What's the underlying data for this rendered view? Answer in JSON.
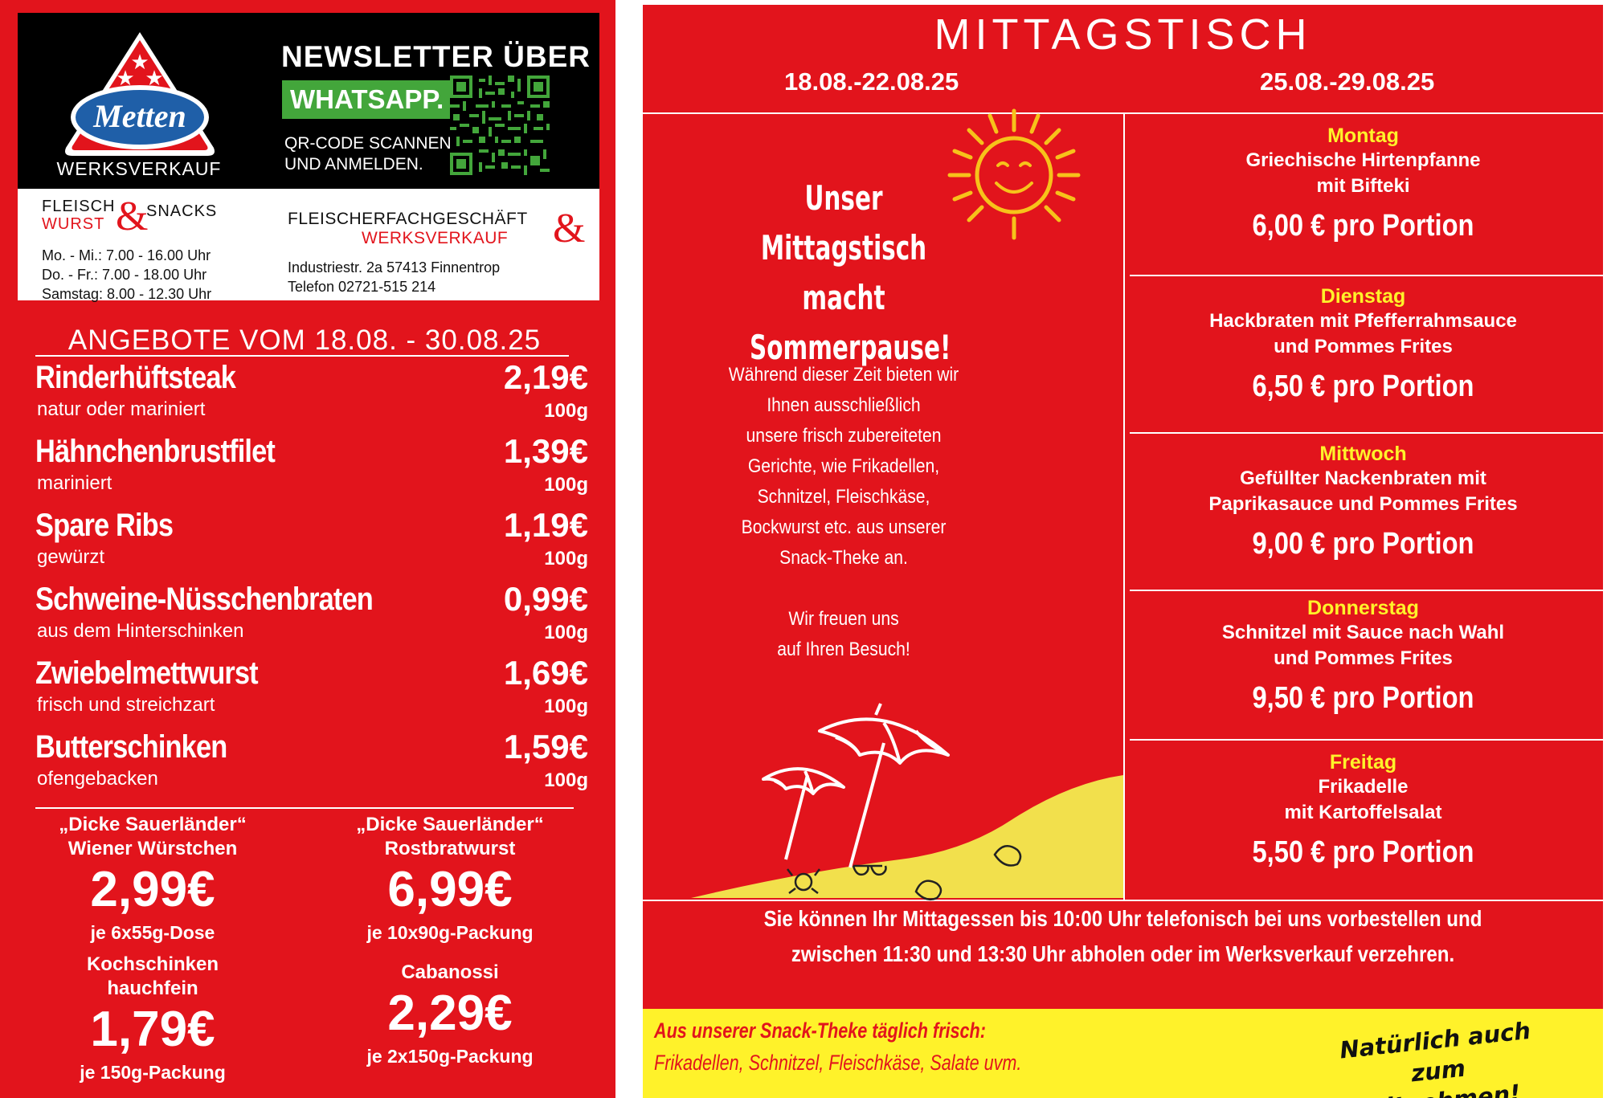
{
  "newsletter": {
    "title": "NEWSLETTER ÜBER",
    "channel": "WHATSAPP.",
    "sub_line1": "QR-CODE SCANNEN",
    "sub_line2": "UND ANMELDEN."
  },
  "brand": {
    "logo_text": "Metten",
    "werksverkauf": "WERKSVERKAUF",
    "colors": {
      "red": "#e2141c",
      "blue": "#1f5fa8",
      "green": "#43a63b",
      "yellow": "#fff22a"
    }
  },
  "shop_left": {
    "fleisch": "FLEISCH",
    "wurst": "WURST",
    "amp": "&",
    "snacks": "SNACKS",
    "hours": [
      "Mo. - Mi.: 7.00 - 16.00 Uhr",
      "Do. - Fr.:   7.00 - 18.00 Uhr",
      "Samstag:  8.00 - 12.30 Uhr"
    ]
  },
  "shop_right": {
    "line1": "FLEISCHERFACHGESCHÄFT",
    "line2": "WERKSVERKAUF",
    "amp": "&",
    "address": "Industriestr. 2a   57413 Finnentrop",
    "phone": "Telefon 02721-515 214"
  },
  "offers": {
    "title": "ANGEBOTE VOM 18.08. - 30.08.25",
    "items": [
      {
        "name": "Rinderhüftsteak",
        "desc": "natur oder mariniert",
        "price": "2,19€",
        "unit": "100g"
      },
      {
        "name": "Hähnchenbrustfilet",
        "desc": "mariniert",
        "price": "1,39€",
        "unit": "100g"
      },
      {
        "name": "Spare Ribs",
        "desc": "gewürzt",
        "price": "1,19€",
        "unit": "100g"
      },
      {
        "name": "Schweine-Nüsschenbraten",
        "desc": "aus dem Hinterschinken",
        "price": "0,99€",
        "unit": "100g"
      },
      {
        "name": "Zwiebelmettwurst",
        "desc": "frisch und streichzart",
        "price": "1,69€",
        "unit": "100g"
      },
      {
        "name": "Butterschinken",
        "desc": "ofengebacken",
        "price": "1,59€",
        "unit": "100g"
      }
    ],
    "specials": [
      {
        "title1": "„Dicke Sauerländer“",
        "title2": "Wiener Würstchen",
        "price": "2,99€",
        "unit": "je 6x55g-Dose"
      },
      {
        "title1": "„Dicke Sauerländer“",
        "title2": "Rostbratwurst",
        "price": "6,99€",
        "unit": "je 10x90g-Packung"
      },
      {
        "title1": "Kochschinken",
        "title2": "hauchfein",
        "price": "1,79€",
        "unit": "je 150g-Packung"
      },
      {
        "title1": "",
        "title2": "Cabanossi",
        "price": "2,29€",
        "unit": "je 2x150g-Packung"
      }
    ]
  },
  "mittagstisch": {
    "title": "MITTAGSTISCH",
    "week1": "18.08.-22.08.25",
    "week2": "25.08.-29.08.25",
    "pause_lines": [
      "Unser",
      "Mittagstisch",
      "macht Sommerpause!"
    ],
    "pause_text": [
      "Während dieser Zeit bieten wir",
      "Ihnen ausschließlich",
      "unsere frisch zubereiteten",
      "Gerichte, wie Frikadellen,",
      "Schnitzel, Fleischkäse,",
      "Bockwurst etc. aus unserer",
      "Snack-Theke an.",
      "",
      "Wir freuen uns",
      "auf Ihren Besuch!"
    ],
    "days": [
      {
        "day": "Montag",
        "meal1": "Griechische Hirtenpfanne",
        "meal2": "mit Bifteki",
        "price": "6,00 € pro Portion"
      },
      {
        "day": "Dienstag",
        "meal1": "Hackbraten mit Pfefferrahmsauce",
        "meal2": "und Pommes Frites",
        "price": "6,50 € pro Portion"
      },
      {
        "day": "Mittwoch",
        "meal1": "Gefüllter Nackenbraten mit",
        "meal2": "Paprikasauce und Pommes Frites",
        "price": "9,00 € pro Portion"
      },
      {
        "day": "Donnerstag",
        "meal1": "Schnitzel mit Sauce nach Wahl",
        "meal2": "und Pommes Frites",
        "price": "9,50 € pro Portion"
      },
      {
        "day": "Freitag",
        "meal1": "Frikadelle",
        "meal2": "mit Kartoffelsalat",
        "price": "5,50 € pro Portion"
      }
    ],
    "order_line1": "Sie können Ihr Mittagessen bis 10:00 Uhr  telefonisch bei  uns vorbestellen  und",
    "order_line2": "zwischen 11:30  und 13:30 Uhr abholen oder  im Werksverkauf verzehren."
  },
  "snack_banner": {
    "line1": "Aus unserer Snack-Theke täglich frisch:",
    "line2": "Frikadellen, Schnitzel, Fleischkäse, Salate uvm.",
    "takeaway1": "Natürlich auch",
    "takeaway2": "zum Mitnehmen!"
  }
}
